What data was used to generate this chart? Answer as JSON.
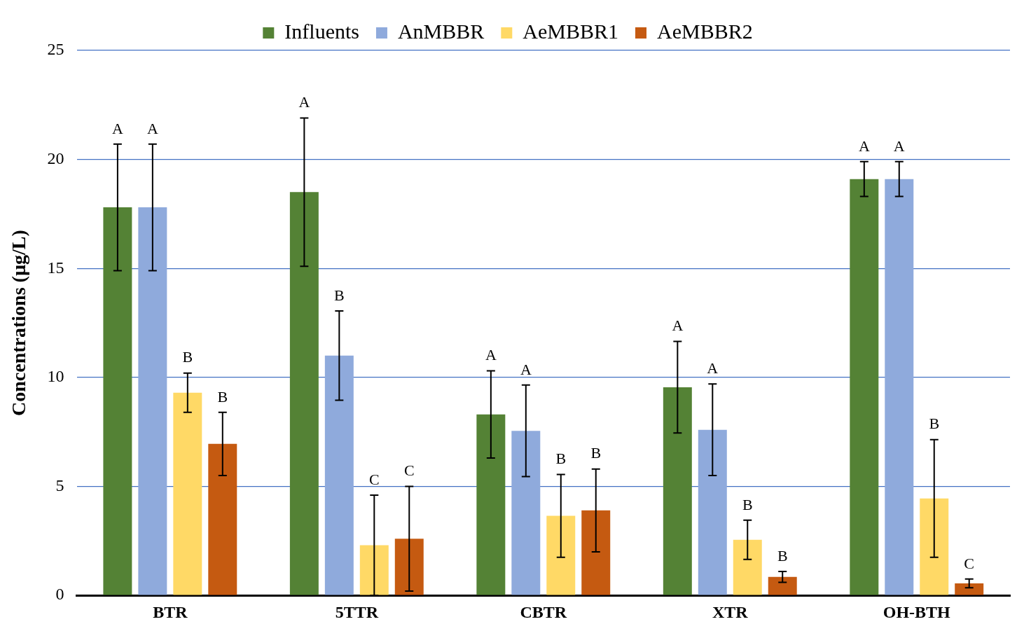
{
  "chart_data": {
    "type": "bar",
    "ylabel": "Concentrations (µg/L)",
    "categories": [
      "BTR",
      "5TTR",
      "CBTR",
      "XTR",
      "OH-BTH"
    ],
    "series": [
      {
        "name": "Influents",
        "color": "#548235",
        "values": [
          17.8,
          18.5,
          8.3,
          9.55,
          19.1
        ],
        "errors": [
          2.9,
          3.4,
          2.0,
          2.1,
          0.8
        ]
      },
      {
        "name": "AnMBBR",
        "color": "#8faadc",
        "values": [
          17.8,
          11.0,
          7.55,
          7.6,
          19.1
        ],
        "errors": [
          2.9,
          2.05,
          2.1,
          2.1,
          0.8
        ]
      },
      {
        "name": "AeMBBR1",
        "color": "#ffd966",
        "values": [
          9.3,
          2.3,
          3.65,
          2.55,
          4.45
        ],
        "errors": [
          0.9,
          2.3,
          1.9,
          0.9,
          2.7
        ]
      },
      {
        "name": "AeMBBR2",
        "color": "#c55a11",
        "values": [
          6.95,
          2.6,
          3.9,
          0.85,
          0.55
        ],
        "errors": [
          1.45,
          2.4,
          1.9,
          0.25,
          0.2
        ]
      }
    ],
    "annotations": [
      "A",
      "A",
      "B",
      "B",
      "A",
      "B",
      "C",
      "C",
      "A",
      "A",
      "B",
      "B",
      "A",
      "A",
      "B",
      "B",
      "A",
      "A",
      "B",
      "C"
    ],
    "ylim": [
      0,
      25
    ],
    "yticks": [
      0,
      5,
      10,
      15,
      20,
      25
    ],
    "grid": "y",
    "legend": "top"
  }
}
